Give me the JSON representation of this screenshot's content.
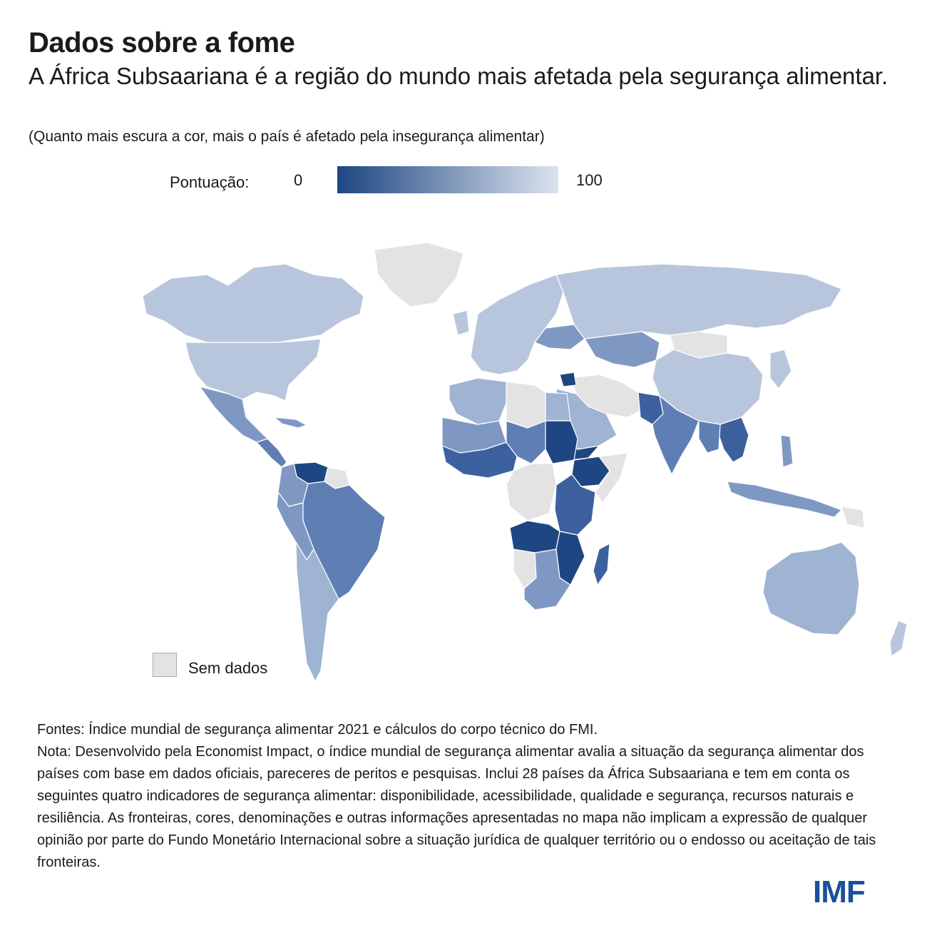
{
  "header": {
    "title": "Dados sobre a fome",
    "subtitle": "A África Subsaariana é a região do mundo mais afetada pela segurança alimentar.",
    "note": "(Quanto mais escura a cor, mais o país é afetado pela insegurança alimentar)"
  },
  "legend": {
    "label": "Pontuação:",
    "min": "0",
    "max": "100",
    "color_dark": "#1d4681",
    "color_light": "#dde3ef",
    "no_data_label": "Sem dados",
    "no_data_color": "#e3e3e3"
  },
  "map": {
    "colors": {
      "light": "#b8c6dd",
      "mid_light": "#9fb3d3",
      "mid": "#7f98c3",
      "mid_dark": "#5f7fb4",
      "dark": "#3d619f",
      "darkest": "#1e4682",
      "no_data": "#e3e3e3"
    }
  },
  "footer": {
    "sources": "Fontes: Índice mundial de segurança alimentar 2021 e cálculos do corpo técnico do FMI.",
    "note": "Nota: Desenvolvido pela Economist Impact, o índice mundial de segurança alimentar avalia a situação da segurança alimentar dos países com base em dados oficiais, pareceres de peritos e pesquisas. Inclui 28 países da África Subsaariana e tem em conta os seguintes quatro indicadores de segurança alimentar: disponibilidade, acessibilidade, qualidade e segurança, recursos naturais e resiliência. As fronteiras, cores, denominações e outras informações apresentadas no mapa não implicam a expressão de qualquer opinião por parte do Fundo Monetário Internacional sobre a situação jurídica de qualquer território ou o endosso ou aceitação de tais fronteiras."
  },
  "logo": "IMF"
}
